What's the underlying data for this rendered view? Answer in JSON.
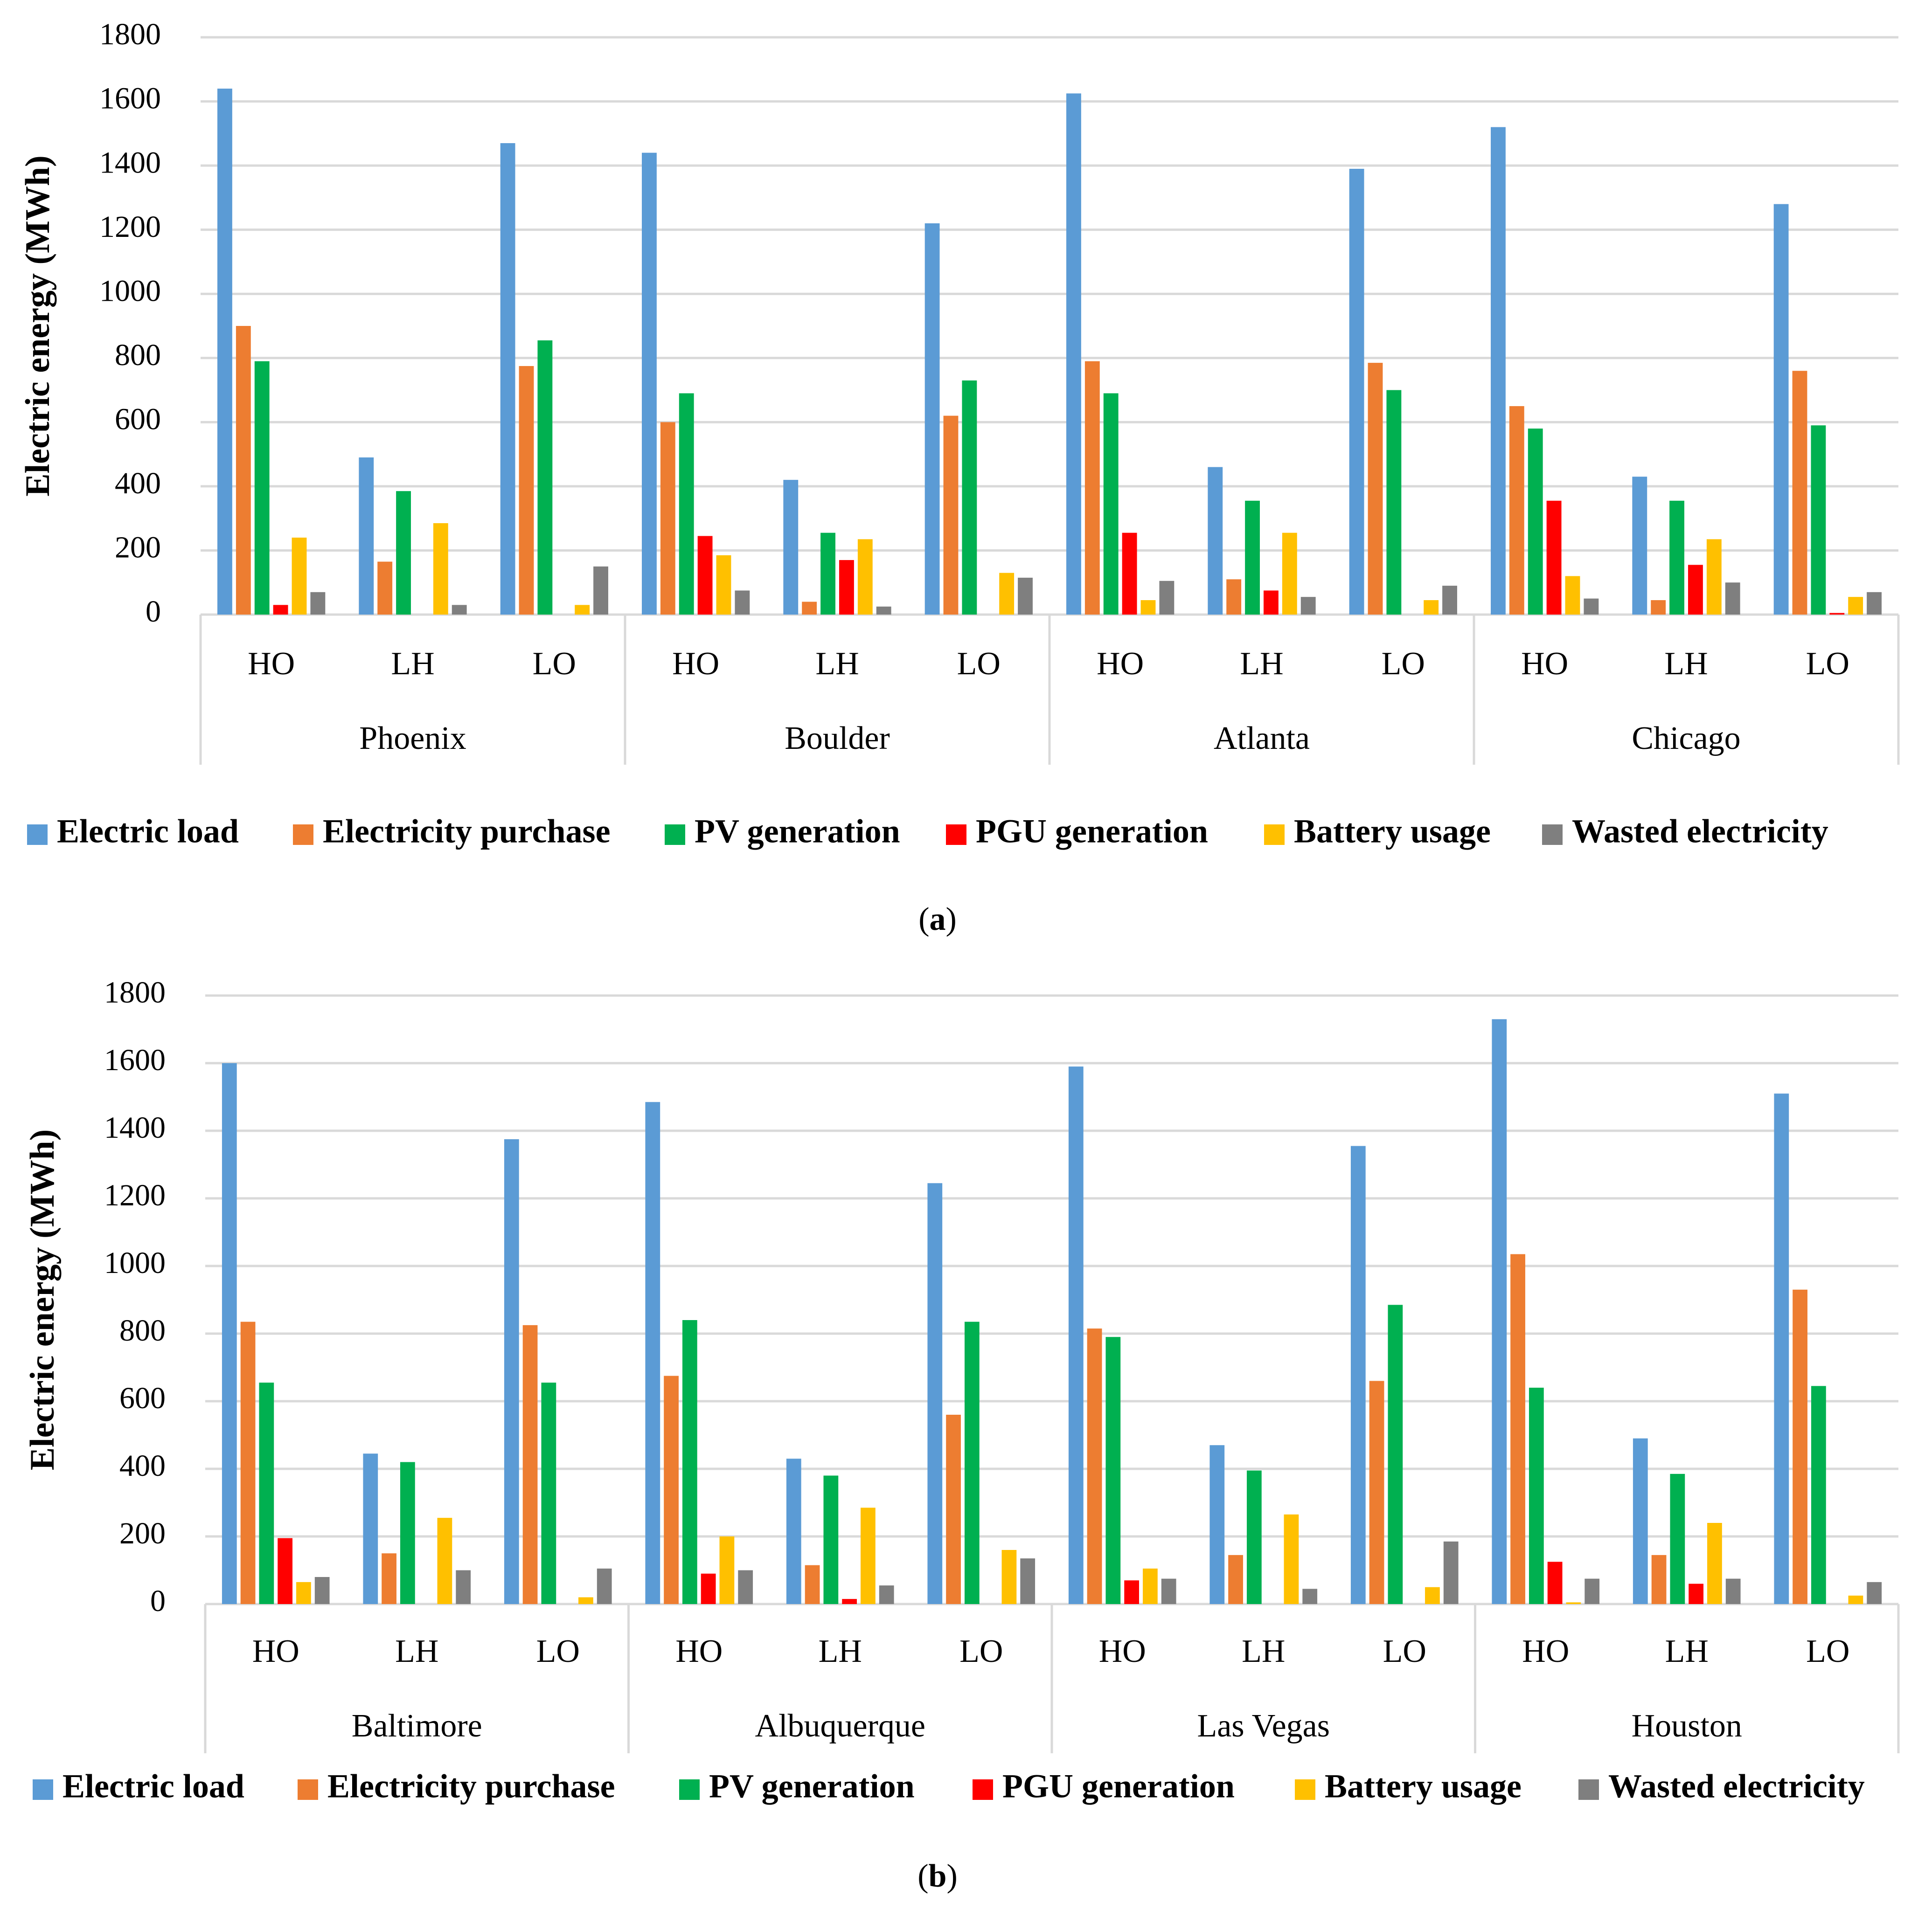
{
  "chart_data": [
    {
      "type": "bar",
      "caption": {
        "open": "(",
        "letter": "a",
        "close": ")"
      },
      "ylabel": "Electric energy (MWh)",
      "ylim": [
        0,
        1800
      ],
      "yticks": [
        0,
        200,
        400,
        600,
        800,
        1000,
        1200,
        1400,
        1600,
        1800
      ],
      "grid": true,
      "legend_position": "bottom",
      "groups": [
        {
          "city": "Phoenix",
          "scenarios": [
            "HO",
            "LH",
            "LO"
          ]
        },
        {
          "city": "Boulder",
          "scenarios": [
            "HO",
            "LH",
            "LO"
          ]
        },
        {
          "city": "Atlanta",
          "scenarios": [
            "HO",
            "LH",
            "LO"
          ]
        },
        {
          "city": "Chicago",
          "scenarios": [
            "HO",
            "LH",
            "LO"
          ]
        }
      ],
      "series": [
        {
          "name": "Electric load",
          "color": "#5B9BD5",
          "values": [
            1640,
            490,
            1470,
            1440,
            420,
            1220,
            1625,
            460,
            1390,
            1520,
            430,
            1280
          ]
        },
        {
          "name": "Electricity purchase",
          "color": "#ED7D31",
          "values": [
            900,
            165,
            775,
            600,
            40,
            620,
            790,
            110,
            785,
            650,
            45,
            760
          ]
        },
        {
          "name": "PV generation",
          "color": "#00B050",
          "values": [
            790,
            385,
            855,
            690,
            255,
            730,
            690,
            355,
            700,
            580,
            355,
            590
          ]
        },
        {
          "name": "PGU generation",
          "color": "#FF0000",
          "values": [
            30,
            0,
            0,
            245,
            170,
            0,
            255,
            75,
            0,
            355,
            155,
            5
          ]
        },
        {
          "name": "Battery usage",
          "color": "#FFC000",
          "values": [
            240,
            285,
            30,
            185,
            235,
            130,
            45,
            255,
            45,
            120,
            235,
            55
          ]
        },
        {
          "name": "Wasted electricity",
          "color": "#7F7F7F",
          "values": [
            70,
            30,
            150,
            75,
            25,
            115,
            105,
            55,
            90,
            50,
            100,
            70
          ]
        }
      ]
    },
    {
      "type": "bar",
      "caption": {
        "open": "(",
        "letter": "b",
        "close": ")"
      },
      "ylabel": "Electric energy (MWh)",
      "ylim": [
        0,
        1800
      ],
      "yticks": [
        0,
        200,
        400,
        600,
        800,
        1000,
        1200,
        1400,
        1600,
        1800
      ],
      "grid": true,
      "legend_position": "bottom",
      "groups": [
        {
          "city": "Baltimore",
          "scenarios": [
            "HO",
            "LH",
            "LO"
          ]
        },
        {
          "city": "Albuquerque",
          "scenarios": [
            "HO",
            "LH",
            "LO"
          ]
        },
        {
          "city": "Las Vegas",
          "scenarios": [
            "HO",
            "LH",
            "LO"
          ]
        },
        {
          "city": "Houston",
          "scenarios": [
            "HO",
            "LH",
            "LO"
          ]
        }
      ],
      "series": [
        {
          "name": "Electric load",
          "color": "#5B9BD5",
          "values": [
            1600,
            445,
            1375,
            1485,
            430,
            1245,
            1590,
            470,
            1355,
            1730,
            490,
            1510
          ]
        },
        {
          "name": "Electricity purchase",
          "color": "#ED7D31",
          "values": [
            835,
            150,
            825,
            675,
            115,
            560,
            815,
            145,
            660,
            1035,
            145,
            930
          ]
        },
        {
          "name": "PV generation",
          "color": "#00B050",
          "values": [
            655,
            420,
            655,
            840,
            380,
            835,
            790,
            395,
            885,
            640,
            385,
            645
          ]
        },
        {
          "name": "PGU generation",
          "color": "#FF0000",
          "values": [
            195,
            0,
            0,
            90,
            15,
            0,
            70,
            0,
            0,
            125,
            60,
            0
          ]
        },
        {
          "name": "Battery usage",
          "color": "#FFC000",
          "values": [
            65,
            255,
            20,
            200,
            285,
            160,
            105,
            265,
            50,
            5,
            240,
            25
          ]
        },
        {
          "name": "Wasted electricity",
          "color": "#7F7F7F",
          "values": [
            80,
            100,
            105,
            100,
            55,
            135,
            75,
            45,
            185,
            75,
            75,
            65
          ]
        }
      ]
    }
  ]
}
